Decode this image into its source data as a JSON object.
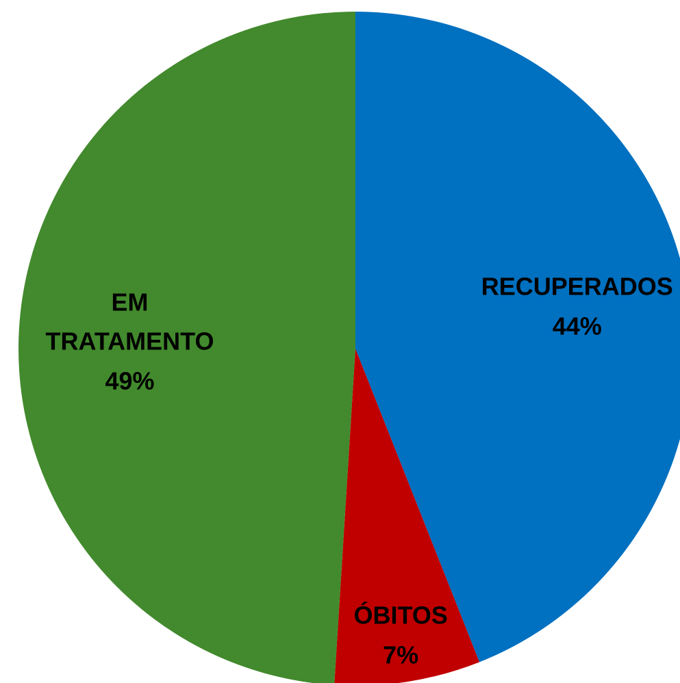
{
  "chart_data": {
    "type": "pie",
    "categories": [
      "RECUPERADOS",
      "ÓBITOS",
      "EM TRATAMENTO"
    ],
    "values": [
      44,
      7,
      49
    ],
    "value_labels": [
      "44%",
      "7%",
      "49%"
    ],
    "colors": [
      "#0070c0",
      "#c00000",
      "#428a2d"
    ]
  }
}
